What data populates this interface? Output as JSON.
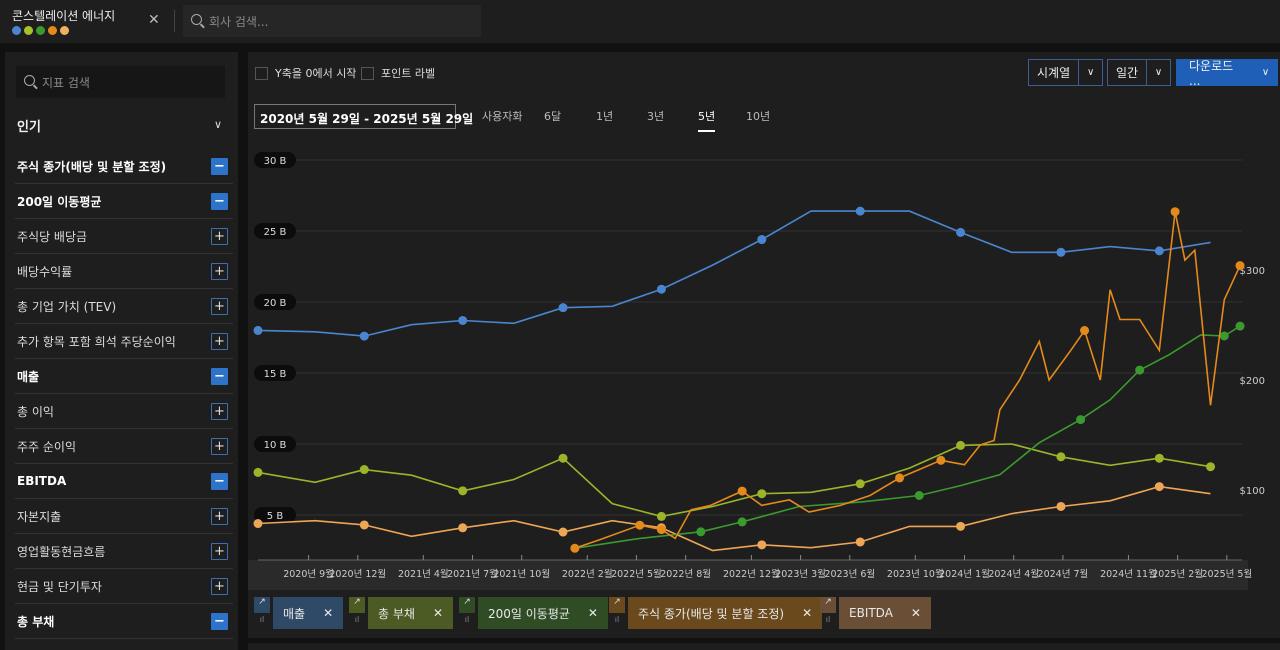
{
  "header": {
    "company": "콘스텔레이션 에너지",
    "company_search_placeholder": "회사 검색...",
    "dot_colors": [
      "#4a86d0",
      "#a6c22b",
      "#3b9a2d",
      "#e48a1c",
      "#f0b060"
    ]
  },
  "sidebar": {
    "search_placeholder": "지표 검색",
    "section": "인기",
    "items": [
      {
        "label": "주식 종가(배당 및 분할 조정)",
        "on": true
      },
      {
        "label": "200일 이동평균",
        "on": true
      },
      {
        "label": "주식당 배당금",
        "on": false
      },
      {
        "label": "배당수익률",
        "on": false
      },
      {
        "label": "총 기업 가치 (TEV)",
        "on": false
      },
      {
        "label": "추가 항목 포함 희석 주당순이익",
        "on": false
      },
      {
        "label": "매출",
        "on": true
      },
      {
        "label": "총 이익",
        "on": false
      },
      {
        "label": "주주 순이익",
        "on": false
      },
      {
        "label": "EBITDA",
        "on": true
      },
      {
        "label": "자본지출",
        "on": false
      },
      {
        "label": "영업활동현금흐름",
        "on": false
      },
      {
        "label": "현금 및 단기투자",
        "on": false
      },
      {
        "label": "총 부채",
        "on": true
      }
    ]
  },
  "toolbar": {
    "y_zero": "Y축을 0에서 시작",
    "point_labels": "포인트 라벨",
    "chart_type": "시계열",
    "frequency": "일간",
    "download": "다운로드 ...",
    "date_range": "2020년 5월 29일   -   2025년 5월 29일",
    "ranges": [
      "사용자화",
      "6달",
      "1년",
      "3년",
      "5년",
      "10년"
    ],
    "active_range": "5년"
  },
  "chart_data": {
    "type": "line",
    "left_axis": {
      "ticks": [
        "5 B",
        "10 B",
        "15 B",
        "20 B",
        "25 B",
        "30 B"
      ],
      "tick_values": [
        5,
        10,
        15,
        20,
        25,
        30
      ],
      "unit": "B"
    },
    "right_axis": {
      "ticks": [
        "$100",
        "$200",
        "$300"
      ],
      "tick_values": [
        100,
        200,
        300
      ]
    },
    "x_ticks": [
      {
        "label": "2020년 9월",
        "x": 2020.667
      },
      {
        "label": "2020년 12월",
        "x": 2020.917
      },
      {
        "label": "2021년 4월",
        "x": 2021.25
      },
      {
        "label": "2021년 7월",
        "x": 2021.5
      },
      {
        "label": "2021년 10월",
        "x": 2021.75
      },
      {
        "label": "2022년 2월",
        "x": 2022.083
      },
      {
        "label": "2022년 5월",
        "x": 2022.333
      },
      {
        "label": "2022년 8월",
        "x": 2022.583
      },
      {
        "label": "2022년 12월",
        "x": 2022.917
      },
      {
        "label": "2023년 3월",
        "x": 2023.167
      },
      {
        "label": "2023년 6월",
        "x": 2023.417
      },
      {
        "label": "2023년 10월",
        "x": 2023.75
      },
      {
        "label": "2024년 1월",
        "x": 2024.0
      },
      {
        "label": "2024년 4월",
        "x": 2024.25
      },
      {
        "label": "2024년 7월",
        "x": 2024.5
      },
      {
        "label": "2024년 11월",
        "x": 2024.833
      },
      {
        "label": "2025년 2월",
        "x": 2025.083
      },
      {
        "label": "2025년 5월",
        "x": 2025.333
      }
    ],
    "xlim": [
      2020.41,
      2025.41
    ],
    "ylim_left": [
      0,
      30
    ],
    "ylim_right": [
      0,
      300
    ],
    "series": [
      {
        "name": "매출",
        "axis": "left",
        "color": "#4a86d0",
        "tag_bg": "#2f4a66",
        "x": [
          2020.41,
          2020.7,
          2020.95,
          2021.19,
          2021.45,
          2021.71,
          2021.96,
          2022.21,
          2022.46,
          2022.72,
          2022.97,
          2023.22,
          2023.47,
          2023.72,
          2023.98,
          2024.24,
          2024.49,
          2024.74,
          2024.99,
          2025.25
        ],
        "y": [
          18.0,
          17.9,
          17.6,
          18.4,
          18.7,
          18.5,
          19.6,
          19.7,
          20.9,
          22.6,
          24.4,
          26.4,
          26.4,
          26.4,
          24.9,
          23.5,
          23.5,
          23.9,
          23.6,
          24.2
        ]
      },
      {
        "name": "총 부채",
        "axis": "left",
        "color": "#9bb52a",
        "tag_bg": "#4c5a23",
        "x": [
          2020.41,
          2020.7,
          2020.95,
          2021.19,
          2021.45,
          2021.71,
          2021.96,
          2022.21,
          2022.46,
          2022.72,
          2022.97,
          2023.22,
          2023.47,
          2023.72,
          2023.98,
          2024.24,
          2024.49,
          2024.74,
          2024.99,
          2025.25
        ],
        "y": [
          8.0,
          7.3,
          8.2,
          7.8,
          6.7,
          7.5,
          9.0,
          5.8,
          4.9,
          5.6,
          6.5,
          6.6,
          7.2,
          8.3,
          9.9,
          10.0,
          9.1,
          8.5,
          9.0,
          8.4
        ]
      },
      {
        "name": "200일 이동평균",
        "axis": "right",
        "color": "#3b9a2d",
        "tag_bg": "#2f4c25",
        "x": [
          2022.02,
          2022.35,
          2022.66,
          2022.87,
          2023.16,
          2023.47,
          2023.77,
          2023.98,
          2024.18,
          2024.38,
          2024.59,
          2024.74,
          2024.89,
          2025.04,
          2025.2,
          2025.32,
          2025.4
        ],
        "y": [
          47,
          56,
          62,
          71,
          85,
          89,
          95,
          104,
          114,
          143,
          164,
          182,
          209,
          223,
          241,
          240,
          249
        ]
      },
      {
        "name": "주식 종가(배당 및 분할 조정)",
        "axis": "right",
        "color": "#e48a1c",
        "tag_bg": "#6a4a1c",
        "x": [
          2022.02,
          2022.15,
          2022.35,
          2022.46,
          2022.53,
          2022.61,
          2022.71,
          2022.87,
          2022.97,
          2023.11,
          2023.21,
          2023.37,
          2023.52,
          2023.67,
          2023.88,
          2024.0,
          2024.08,
          2024.15,
          2024.18,
          2024.28,
          2024.38,
          2024.43,
          2024.54,
          2024.61,
          2024.69,
          2024.74,
          2024.79,
          2024.89,
          2024.99,
          2025.07,
          2025.12,
          2025.17,
          2025.25,
          2025.32,
          2025.4
        ],
        "y": [
          47,
          55,
          68,
          64,
          56,
          82,
          86,
          99,
          86,
          91,
          80,
          86,
          95,
          111,
          127,
          123,
          141,
          145,
          173,
          200,
          235,
          200,
          227,
          245,
          200,
          282,
          255,
          255,
          227,
          353,
          309,
          318,
          177,
          273,
          304
        ]
      },
      {
        "name": "EBITDA",
        "axis": "left",
        "color": "#eda556",
        "tag_bg": "#6a4e35",
        "x": [
          2020.41,
          2020.7,
          2020.95,
          2021.19,
          2021.45,
          2021.71,
          2021.96,
          2022.21,
          2022.46,
          2022.72,
          2022.97,
          2023.22,
          2023.47,
          2023.72,
          2023.98,
          2024.24,
          2024.49,
          2024.74,
          2024.99,
          2025.25
        ],
        "y": [
          4.4,
          4.6,
          4.3,
          3.5,
          4.1,
          4.6,
          3.8,
          4.6,
          4.1,
          2.5,
          2.9,
          2.7,
          3.1,
          4.2,
          4.2,
          5.1,
          5.6,
          6.0,
          7.0,
          6.5
        ]
      }
    ],
    "legend_order": [
      0,
      1,
      2,
      3,
      4
    ],
    "grid": true
  }
}
